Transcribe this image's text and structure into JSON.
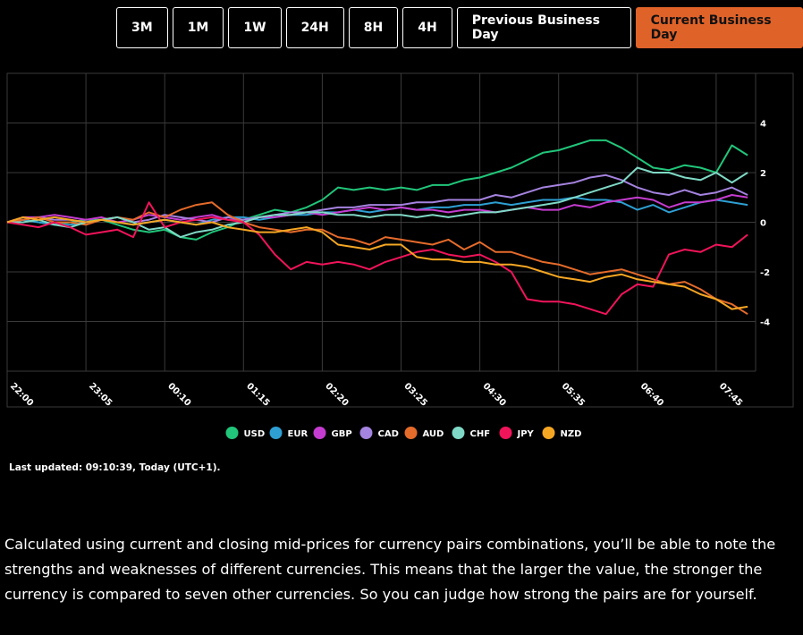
{
  "buttons": {
    "items": [
      "3M",
      "1M",
      "1W",
      "24H",
      "8H",
      "4H",
      "Previous Business Day",
      "Current Business Day"
    ],
    "active": 7
  },
  "chart_data": {
    "type": "line",
    "categories": [
      "22:00",
      null,
      null,
      null,
      null,
      "23:05",
      null,
      null,
      null,
      null,
      "00:10",
      null,
      null,
      null,
      null,
      "01:15",
      null,
      null,
      null,
      null,
      "02:20",
      null,
      null,
      null,
      null,
      "03:25",
      null,
      null,
      null,
      null,
      "04:30",
      null,
      null,
      null,
      null,
      "05:35",
      null,
      null,
      null,
      null,
      "06:40",
      null,
      null,
      null,
      null,
      "07:45",
      null,
      null
    ],
    "ylim": [
      -6,
      6
    ],
    "yticks": [
      -4,
      -2,
      0,
      2,
      4
    ],
    "grid": true,
    "legend": "bottom",
    "series": [
      {
        "name": "USD",
        "color": "#21c67a",
        "values": [
          0,
          0.1,
          0,
          -0.1,
          0,
          0.1,
          0.1,
          -0.1,
          -0.3,
          -0.4,
          -0.3,
          -0.6,
          -0.7,
          -0.4,
          -0.2,
          0.1,
          0.3,
          0.5,
          0.4,
          0.6,
          0.9,
          1.4,
          1.3,
          1.4,
          1.3,
          1.4,
          1.3,
          1.5,
          1.5,
          1.7,
          1.8,
          2.0,
          2.2,
          2.5,
          2.8,
          2.9,
          3.1,
          3.3,
          3.3,
          3.0,
          2.6,
          2.2,
          2.1,
          2.3,
          2.2,
          2.0,
          3.1,
          2.7
        ]
      },
      {
        "name": "EUR",
        "color": "#2e9fd3",
        "values": [
          0,
          0.1,
          0,
          -0.1,
          -0.1,
          0,
          0.1,
          0,
          -0.1,
          0,
          0.1,
          0,
          -0.1,
          0.1,
          0.2,
          0.2,
          0.1,
          0.2,
          0.3,
          0.3,
          0.4,
          0.4,
          0.5,
          0.4,
          0.5,
          0.6,
          0.5,
          0.6,
          0.6,
          0.7,
          0.7,
          0.8,
          0.7,
          0.8,
          0.9,
          0.9,
          1.0,
          0.9,
          0.9,
          0.8,
          0.5,
          0.7,
          0.4,
          0.6,
          0.8,
          0.9,
          0.8,
          0.7
        ]
      },
      {
        "name": "GBP",
        "color": "#c53cd0",
        "values": [
          0,
          0.2,
          0.2,
          0.3,
          0.2,
          0.1,
          0.2,
          0,
          0.1,
          0.3,
          0.2,
          0.1,
          0.2,
          0.3,
          0.1,
          0.1,
          0.2,
          0.2,
          0.3,
          0.4,
          0.3,
          0.4,
          0.5,
          0.6,
          0.5,
          0.6,
          0.5,
          0.5,
          0.4,
          0.5,
          0.5,
          0.4,
          0.5,
          0.6,
          0.5,
          0.5,
          0.7,
          0.6,
          0.8,
          0.9,
          1.0,
          0.9,
          0.6,
          0.8,
          0.8,
          0.9,
          1.1,
          1.0
        ]
      },
      {
        "name": "CAD",
        "color": "#a583e0",
        "values": [
          0,
          0.1,
          0.2,
          0.1,
          0.1,
          0,
          0.1,
          0.2,
          0,
          0.1,
          0.3,
          0.2,
          0.1,
          0,
          0.2,
          0.1,
          0.2,
          0.3,
          0.4,
          0.4,
          0.5,
          0.6,
          0.6,
          0.7,
          0.7,
          0.7,
          0.8,
          0.8,
          0.9,
          0.9,
          0.9,
          1.1,
          1.0,
          1.2,
          1.4,
          1.5,
          1.6,
          1.8,
          1.9,
          1.7,
          1.4,
          1.2,
          1.1,
          1.3,
          1.1,
          1.2,
          1.4,
          1.1
        ]
      },
      {
        "name": "AUD",
        "color": "#e56b2b",
        "values": [
          0,
          0.1,
          0.2,
          0,
          0,
          -0.1,
          0.1,
          0.2,
          0.1,
          0.4,
          0.2,
          0.5,
          0.7,
          0.8,
          0.3,
          0,
          -0.2,
          -0.3,
          -0.4,
          -0.3,
          -0.3,
          -0.6,
          -0.7,
          -0.9,
          -0.6,
          -0.7,
          -0.8,
          -0.9,
          -0.7,
          -1.1,
          -0.8,
          -1.2,
          -1.2,
          -1.4,
          -1.6,
          -1.7,
          -1.9,
          -2.1,
          -2.0,
          -1.9,
          -2.1,
          -2.3,
          -2.5,
          -2.4,
          -2.7,
          -3.1,
          -3.3,
          -3.7
        ]
      },
      {
        "name": "CHF",
        "color": "#7fd9c6",
        "values": [
          0,
          0,
          0.1,
          -0.1,
          -0.2,
          0,
          0.1,
          0.2,
          0,
          -0.3,
          -0.2,
          -0.6,
          -0.4,
          -0.3,
          -0.1,
          0,
          0.2,
          0.3,
          0.3,
          0.4,
          0.4,
          0.3,
          0.3,
          0.2,
          0.3,
          0.3,
          0.2,
          0.3,
          0.2,
          0.3,
          0.4,
          0.4,
          0.5,
          0.6,
          0.7,
          0.8,
          1.0,
          1.2,
          1.4,
          1.6,
          2.2,
          2.0,
          2.0,
          1.8,
          1.7,
          2.0,
          1.6,
          2.0
        ]
      },
      {
        "name": "JPY",
        "color": "#f0145a",
        "values": [
          0,
          -0.1,
          -0.2,
          0,
          -0.2,
          -0.5,
          -0.4,
          -0.3,
          -0.6,
          0.8,
          -0.2,
          0,
          0.1,
          0.2,
          0.1,
          0,
          -0.5,
          -1.3,
          -1.9,
          -1.6,
          -1.7,
          -1.6,
          -1.7,
          -1.9,
          -1.6,
          -1.4,
          -1.2,
          -1.1,
          -1.3,
          -1.4,
          -1.3,
          -1.6,
          -2.0,
          -3.1,
          -3.2,
          -3.2,
          -3.3,
          -3.5,
          -3.7,
          -2.9,
          -2.5,
          -2.6,
          -1.3,
          -1.1,
          -1.2,
          -0.9,
          -1.0,
          -0.5
        ]
      },
      {
        "name": "NZD",
        "color": "#f5a623",
        "values": [
          0,
          0.2,
          0.1,
          0.2,
          0.1,
          0,
          0.1,
          0,
          -0.1,
          0,
          0.1,
          0,
          -0.1,
          0,
          -0.2,
          -0.3,
          -0.4,
          -0.4,
          -0.3,
          -0.2,
          -0.4,
          -0.9,
          -1.0,
          -1.1,
          -0.9,
          -0.9,
          -1.4,
          -1.5,
          -1.5,
          -1.6,
          -1.6,
          -1.7,
          -1.7,
          -1.8,
          -2.0,
          -2.2,
          -2.3,
          -2.4,
          -2.2,
          -2.1,
          -2.3,
          -2.4,
          -2.5,
          -2.6,
          -2.9,
          -3.1,
          -3.5,
          -3.4
        ]
      }
    ]
  },
  "last_updated": "Last updated: 09:10:39, Today (UTC+1).",
  "description": "Calculated using current and closing mid-prices for currency pairs combinations, you’ll be able to note the strengths and weaknesses of different currencies. This means that the larger the value, the stronger the currency is compared to seven other currencies. So you can judge how strong the pairs are for yourself."
}
